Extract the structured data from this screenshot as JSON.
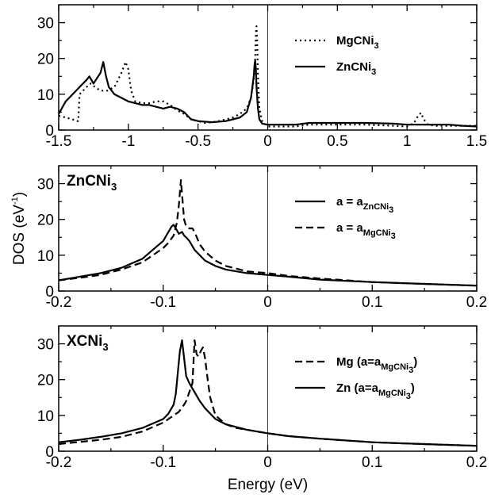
{
  "chart_data": [
    {
      "type": "line",
      "title": "",
      "xlabel": "",
      "ylabel": "",
      "xlim": [
        -1.5,
        1.5
      ],
      "ylim": [
        0,
        35
      ],
      "xticks": [
        "-1.5",
        "-1",
        "-0.5",
        "0",
        "0.5",
        "1",
        "1.5"
      ],
      "yticks": [
        "0",
        "10",
        "20",
        "30"
      ],
      "vline_x": 0,
      "legend_position": "right",
      "series": [
        {
          "name": "MgCNi",
          "name_sub": "3",
          "dash": "dotted",
          "x": [
            -1.5,
            -1.45,
            -1.4,
            -1.38,
            -1.36,
            -1.35,
            -1.3,
            -1.27,
            -1.24,
            -1.2,
            -1.15,
            -1.1,
            -1.05,
            -1.02,
            -1.0,
            -0.98,
            -0.95,
            -0.9,
            -0.85,
            -0.8,
            -0.75,
            -0.7,
            -0.65,
            -0.6,
            -0.55,
            -0.5,
            -0.45,
            -0.4,
            -0.35,
            -0.3,
            -0.25,
            -0.2,
            -0.15,
            -0.12,
            -0.1,
            -0.09,
            -0.085,
            -0.08,
            -0.075,
            -0.07,
            -0.06,
            -0.04,
            0.0,
            0.1,
            0.2,
            0.3,
            0.5,
            0.7,
            0.9,
            1.0,
            1.05,
            1.08,
            1.1,
            1.12,
            1.15,
            1.2,
            1.3,
            1.4,
            1.5
          ],
          "y": [
            4,
            3.5,
            3,
            2.5,
            2.5,
            10,
            12,
            13,
            12,
            11,
            11,
            12,
            16,
            19,
            17,
            11,
            8,
            7.5,
            7.5,
            8,
            8,
            7,
            5.5,
            4.5,
            3,
            2.5,
            2,
            2.2,
            2.5,
            3,
            3.5,
            4.5,
            6,
            9,
            14,
            20,
            27,
            29,
            24,
            15,
            6,
            2.5,
            1,
            1,
            1,
            1.5,
            1.5,
            1.5,
            1.2,
            1,
            2,
            4,
            4.8,
            3,
            1.5,
            1.2,
            1.2,
            1.2,
            1.2
          ]
        },
        {
          "name": "ZnCNi",
          "name_sub": "3",
          "dash": "solid",
          "x": [
            -1.5,
            -1.45,
            -1.4,
            -1.35,
            -1.3,
            -1.28,
            -1.25,
            -1.2,
            -1.18,
            -1.16,
            -1.14,
            -1.1,
            -1.05,
            -1.0,
            -0.95,
            -0.9,
            -0.85,
            -0.8,
            -0.75,
            -0.7,
            -0.65,
            -0.6,
            -0.55,
            -0.5,
            -0.4,
            -0.3,
            -0.25,
            -0.2,
            -0.15,
            -0.12,
            -0.1,
            -0.095,
            -0.09,
            -0.085,
            -0.08,
            -0.07,
            -0.06,
            -0.04,
            0.0,
            0.1,
            0.2,
            0.3,
            0.5,
            0.7,
            0.9,
            1.0,
            1.1,
            1.2,
            1.3,
            1.4,
            1.5
          ],
          "y": [
            4.5,
            8,
            10,
            12,
            14,
            15,
            13,
            16,
            19,
            15,
            12,
            10,
            9,
            8,
            7.5,
            7,
            7,
            6.5,
            6,
            6.5,
            6,
            5,
            3,
            2.5,
            2.2,
            2.5,
            3,
            3.5,
            5,
            9,
            15,
            18,
            19.5,
            17,
            12,
            6,
            3,
            1.8,
            1.5,
            1.5,
            1.5,
            2,
            2,
            2,
            1.8,
            1.5,
            1.5,
            1.5,
            1.5,
            1.2,
            1
          ]
        }
      ]
    },
    {
      "type": "line",
      "title": "ZnCNi",
      "title_sub": "3",
      "xlabel": "",
      "ylabel": "DOS (eV",
      "ylabel_sup": "-1",
      "ylabel_end": ")",
      "xlim": [
        -0.2,
        0.2
      ],
      "ylim": [
        0,
        35
      ],
      "xticks": [
        "-0.2",
        "-0.1",
        "0",
        "0.1",
        "0.2"
      ],
      "yticks": [
        "0",
        "10",
        "20",
        "30"
      ],
      "vline_x": 0,
      "legend_position": "right",
      "series": [
        {
          "name": "a = a",
          "name_sub": "ZnCNi",
          "name_sub2": "3",
          "dash": "solid",
          "x": [
            -0.2,
            -0.18,
            -0.16,
            -0.14,
            -0.12,
            -0.11,
            -0.1,
            -0.095,
            -0.092,
            -0.09,
            -0.088,
            -0.085,
            -0.082,
            -0.08,
            -0.078,
            -0.075,
            -0.07,
            -0.065,
            -0.06,
            -0.05,
            -0.04,
            -0.02,
            0.0,
            0.02,
            0.05,
            0.1,
            0.15,
            0.2
          ],
          "y": [
            3,
            4,
            5,
            6.5,
            9,
            11.5,
            14,
            16.5,
            18,
            18.5,
            17.5,
            16,
            16.5,
            15.5,
            15,
            14,
            11.5,
            10,
            8.5,
            7,
            6,
            5,
            4.5,
            4,
            3.2,
            2.5,
            2,
            1.5
          ]
        },
        {
          "name": "a = a",
          "name_sub": "MgCNi",
          "name_sub2": "3",
          "dash": "dashed",
          "x": [
            -0.2,
            -0.18,
            -0.16,
            -0.14,
            -0.12,
            -0.11,
            -0.1,
            -0.095,
            -0.09,
            -0.087,
            -0.085,
            -0.083,
            -0.082,
            -0.08,
            -0.078,
            -0.075,
            -0.072,
            -0.07,
            -0.065,
            -0.06,
            -0.05,
            -0.04,
            -0.02,
            0.0,
            0.02,
            0.05,
            0.1,
            0.15,
            0.2
          ],
          "y": [
            3,
            3.7,
            4.5,
            6,
            8,
            10,
            12,
            13.5,
            15.5,
            19,
            24,
            31,
            27,
            20,
            18,
            17.5,
            17.5,
            16.5,
            13,
            11,
            8.5,
            7,
            5.5,
            5,
            4.2,
            3.5,
            2.5,
            2,
            1.5
          ]
        }
      ]
    },
    {
      "type": "line",
      "title": "XCNi",
      "title_sub": "3",
      "xlabel": "Energy (eV)",
      "ylabel": "",
      "xlim": [
        -0.2,
        0.2
      ],
      "ylim": [
        0,
        35
      ],
      "xticks": [
        "-0.2",
        "-0.1",
        "0",
        "0.1",
        "0.2"
      ],
      "yticks": [
        "0",
        "10",
        "20",
        "30"
      ],
      "vline_x": 0,
      "legend_position": "right",
      "series": [
        {
          "name": "Mg (a=a",
          "name_sub": "MgCNi",
          "name_sub2": "3",
          "name_end": ")",
          "dash": "dashed",
          "x": [
            -0.2,
            -0.18,
            -0.16,
            -0.14,
            -0.12,
            -0.1,
            -0.09,
            -0.085,
            -0.08,
            -0.078,
            -0.075,
            -0.072,
            -0.07,
            -0.068,
            -0.066,
            -0.064,
            -0.062,
            -0.06,
            -0.057,
            -0.055,
            -0.05,
            -0.04,
            -0.03,
            -0.02,
            0.0,
            0.02,
            0.05,
            0.1,
            0.15,
            0.2
          ],
          "y": [
            2,
            2.6,
            3.2,
            4,
            5.5,
            8,
            10,
            11,
            13,
            14,
            16.5,
            19,
            31,
            27,
            26.5,
            28,
            29,
            26,
            19,
            15,
            10,
            7.5,
            6.5,
            6,
            5,
            4.2,
            3.5,
            2.5,
            2,
            1.5
          ]
        },
        {
          "name": "Zn (a=a",
          "name_sub": "MgCNi",
          "name_sub2": "3",
          "name_end": ")",
          "dash": "solid",
          "x": [
            -0.2,
            -0.18,
            -0.16,
            -0.14,
            -0.12,
            -0.1,
            -0.095,
            -0.09,
            -0.088,
            -0.086,
            -0.084,
            -0.082,
            -0.08,
            -0.078,
            -0.075,
            -0.072,
            -0.07,
            -0.065,
            -0.06,
            -0.05,
            -0.04,
            -0.02,
            0.0,
            0.02,
            0.05,
            0.1,
            0.15,
            0.2
          ],
          "y": [
            2.5,
            3.2,
            4,
            5,
            6.5,
            9,
            10.5,
            13,
            16,
            22,
            28,
            31,
            26,
            21,
            19,
            17.5,
            16.5,
            14,
            12,
            9,
            7.5,
            6,
            5,
            4.2,
            3.5,
            2.5,
            2,
            1.5
          ]
        }
      ]
    }
  ]
}
